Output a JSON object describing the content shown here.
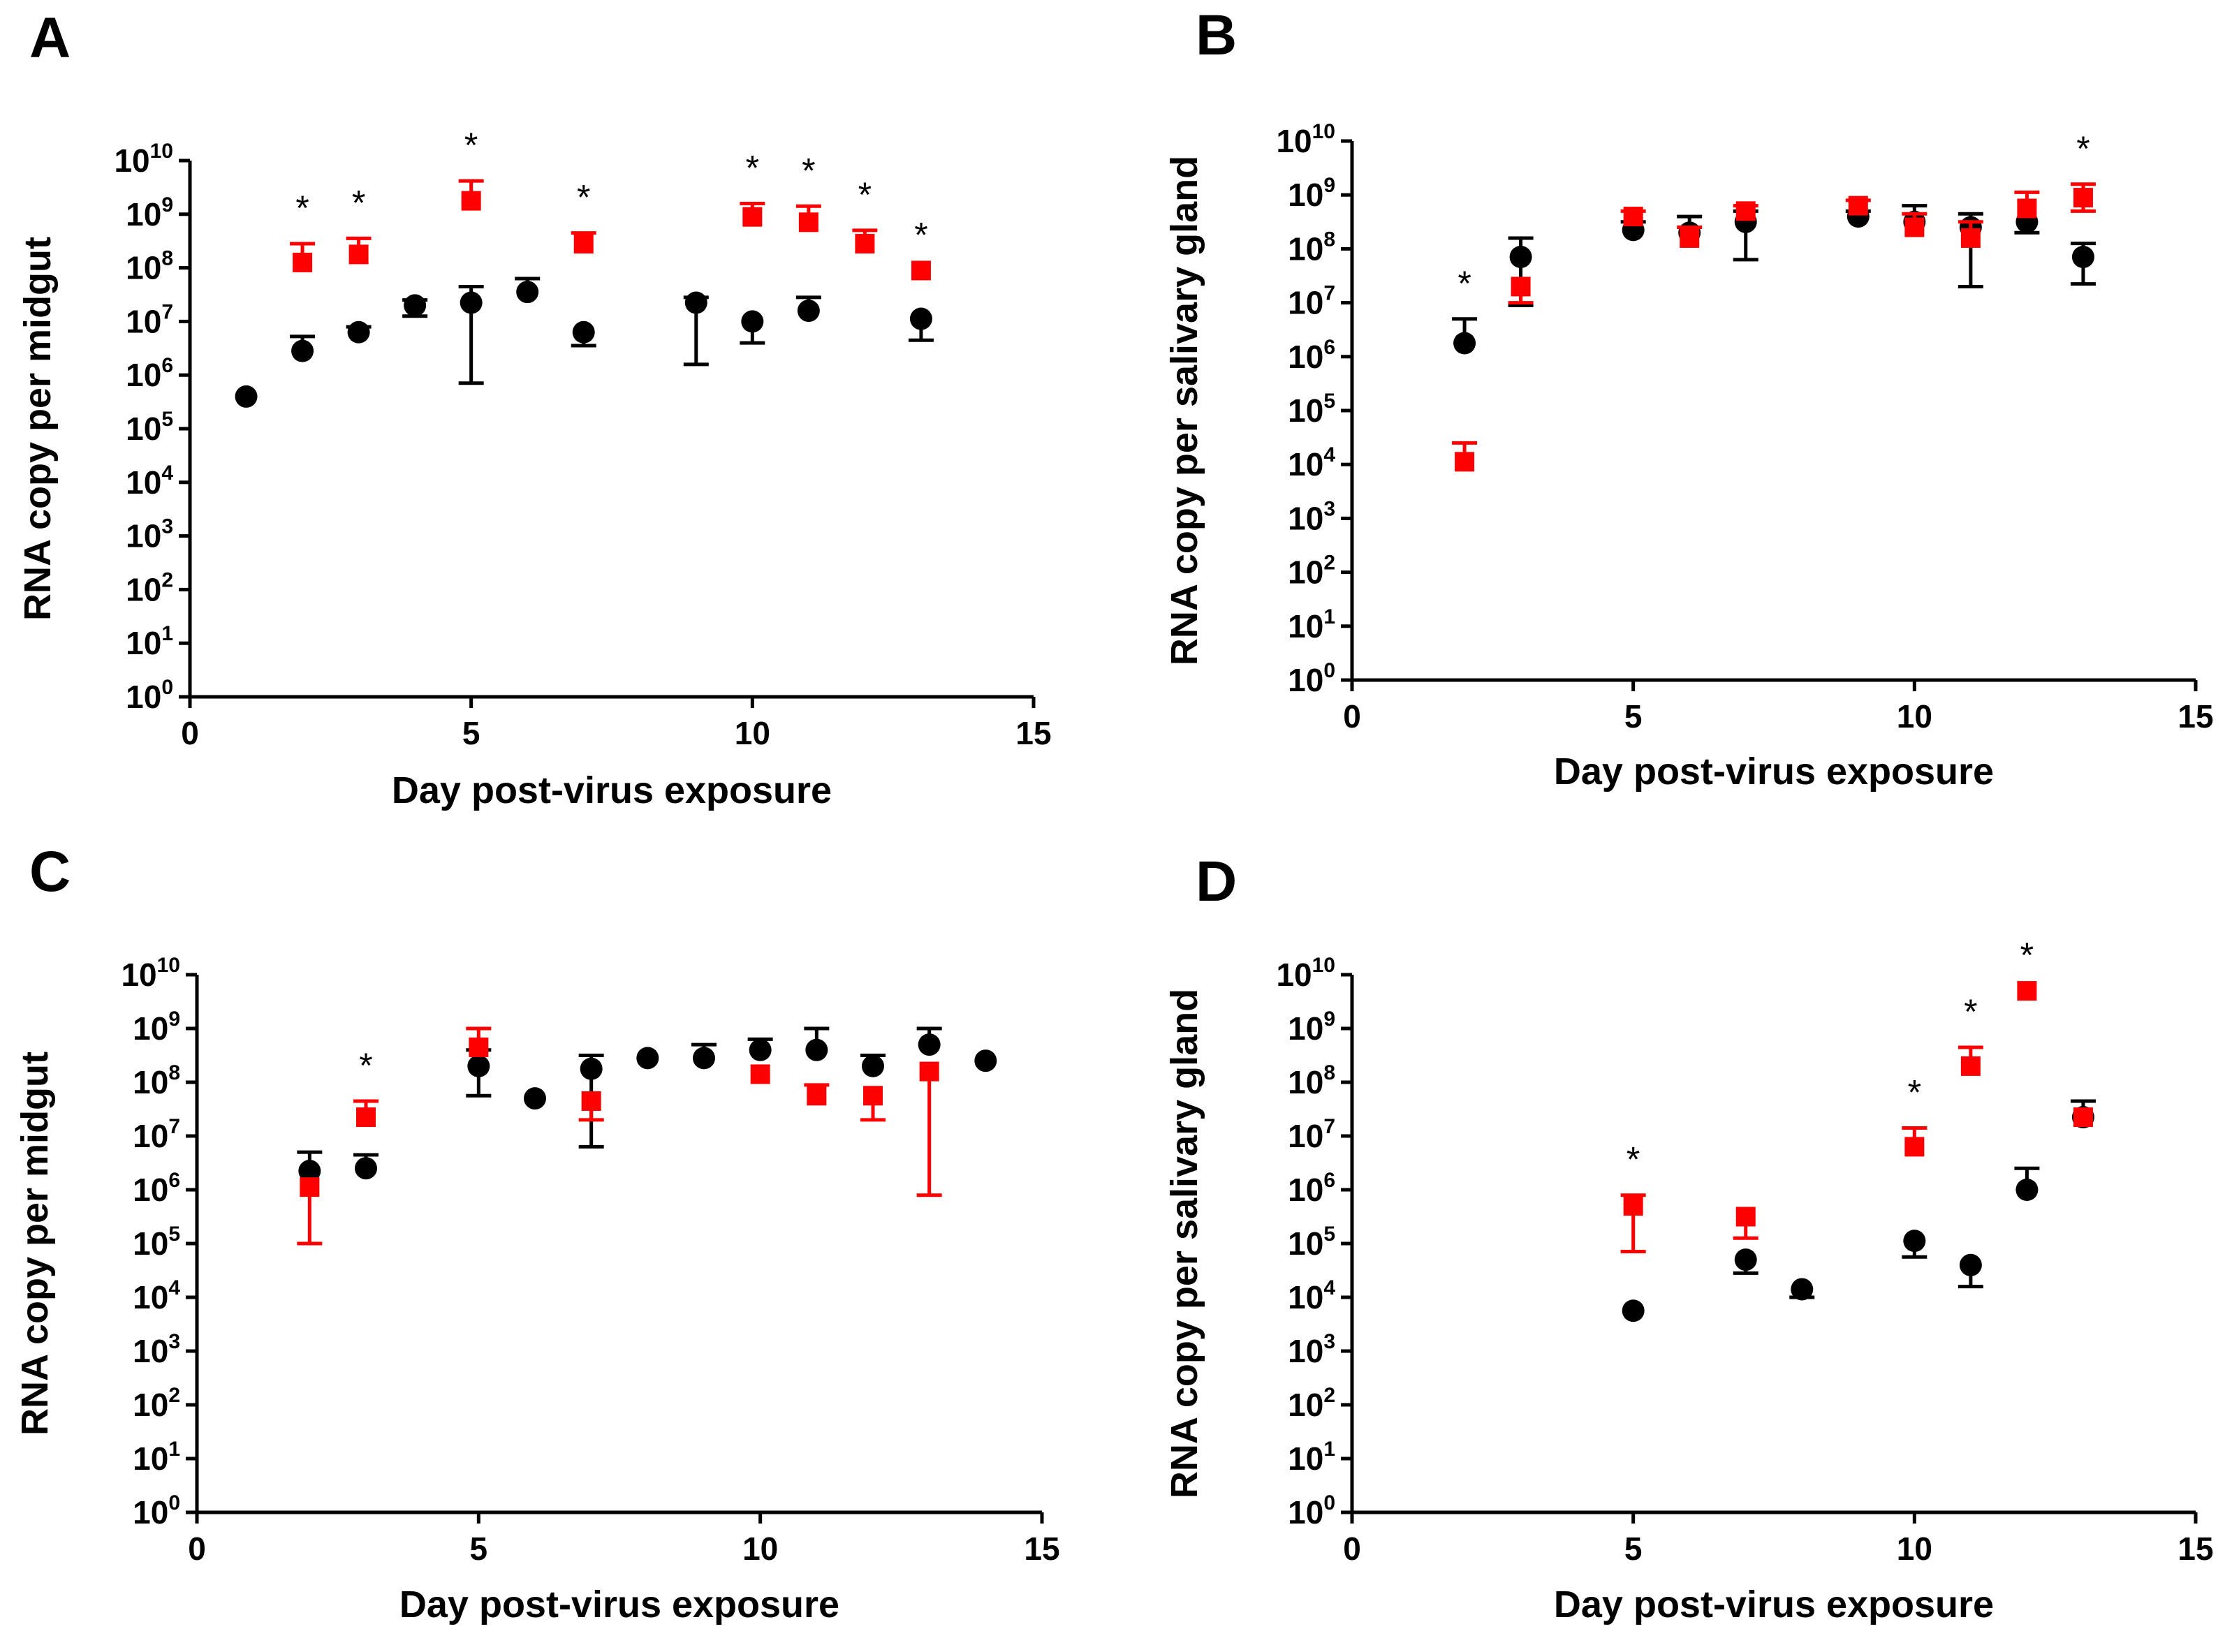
{
  "colors": {
    "series_black": "#000000",
    "series_red": "#ff0000"
  },
  "chart_data": [
    {
      "panel": "A",
      "type": "scatter",
      "xlabel": "Day post-virus exposure",
      "ylabel": "RNA copy per midgut",
      "xlim": [
        0,
        15
      ],
      "xticks": [
        0,
        5,
        10,
        15
      ],
      "xtick_labels": [
        "0",
        "5",
        "10",
        "15"
      ],
      "ylim_log10": [
        0,
        10
      ],
      "yticks_log10": [
        0,
        1,
        2,
        3,
        4,
        5,
        6,
        7,
        8,
        9,
        10
      ],
      "ytick_base": "10",
      "ytick_exponents": [
        "0",
        "1",
        "2",
        "3",
        "4",
        "5",
        "6",
        "7",
        "8",
        "9",
        "10"
      ],
      "significance_marker": "*",
      "significant_days": [
        2,
        3,
        5,
        7,
        10,
        11,
        12,
        13
      ],
      "series": [
        {
          "marker": "circle",
          "color": "#000000",
          "points": [
            {
              "day": 1,
              "log10_value": 5.6
            },
            {
              "day": 2,
              "log10_value": 6.45,
              "err_up": 6.72
            },
            {
              "day": 3,
              "log10_value": 6.8,
              "err_up": 6.9
            },
            {
              "day": 4,
              "log10_value": 7.3,
              "err_up": 7.4,
              "err_down": 7.1
            },
            {
              "day": 5,
              "log10_value": 7.35,
              "err_up": 7.65,
              "err_down": 5.85
            },
            {
              "day": 6,
              "log10_value": 7.55,
              "err_up": 7.8
            },
            {
              "day": 7,
              "log10_value": 6.8,
              "err_down": 6.55
            },
            {
              "day": 9,
              "log10_value": 7.35,
              "err_up": 7.45,
              "err_down": 6.2
            },
            {
              "day": 10,
              "log10_value": 7.0,
              "err_down": 6.6
            },
            {
              "day": 11,
              "log10_value": 7.2,
              "err_up": 7.45
            },
            {
              "day": 13,
              "log10_value": 7.05,
              "err_down": 6.65
            }
          ]
        },
        {
          "marker": "square",
          "color": "#ff0000",
          "points": [
            {
              "day": 2,
              "log10_value": 8.1,
              "err_up": 8.45
            },
            {
              "day": 3,
              "log10_value": 8.25,
              "err_up": 8.55
            },
            {
              "day": 5,
              "log10_value": 9.25,
              "err_up": 9.62
            },
            {
              "day": 7,
              "log10_value": 8.45,
              "err_up": 8.65
            },
            {
              "day": 10,
              "log10_value": 8.95,
              "err_up": 9.2
            },
            {
              "day": 11,
              "log10_value": 8.85,
              "err_up": 9.15
            },
            {
              "day": 12,
              "log10_value": 8.45,
              "err_up": 8.7
            },
            {
              "day": 13,
              "log10_value": 7.95
            }
          ]
        }
      ]
    },
    {
      "panel": "B",
      "type": "scatter",
      "xlabel": "Day post-virus exposure",
      "ylabel": "RNA copy per salivary gland",
      "xlim": [
        0,
        15
      ],
      "xticks": [
        0,
        5,
        10,
        15
      ],
      "xtick_labels": [
        "0",
        "5",
        "10",
        "15"
      ],
      "ylim_log10": [
        0,
        10
      ],
      "yticks_log10": [
        0,
        1,
        2,
        3,
        4,
        5,
        6,
        7,
        8,
        9,
        10
      ],
      "ytick_base": "10",
      "ytick_exponents": [
        "0",
        "1",
        "2",
        "3",
        "4",
        "5",
        "6",
        "7",
        "8",
        "9",
        "10"
      ],
      "significance_marker": "*",
      "significant_days": [
        2,
        13
      ],
      "series": [
        {
          "marker": "circle",
          "color": "#000000",
          "points": [
            {
              "day": 2,
              "log10_value": 6.25,
              "err_up": 6.7
            },
            {
              "day": 3,
              "log10_value": 7.85,
              "err_up": 8.2,
              "err_down": 6.95
            },
            {
              "day": 5,
              "log10_value": 8.35,
              "err_up": 8.5
            },
            {
              "day": 6,
              "log10_value": 8.3,
              "err_up": 8.6
            },
            {
              "day": 7,
              "log10_value": 8.5,
              "err_up": 8.7,
              "err_down": 7.8
            },
            {
              "day": 9,
              "log10_value": 8.6,
              "err_up": 8.7
            },
            {
              "day": 10,
              "log10_value": 8.5,
              "err_up": 8.8
            },
            {
              "day": 11,
              "log10_value": 8.4,
              "err_up": 8.65,
              "err_down": 7.3
            },
            {
              "day": 12,
              "log10_value": 8.5,
              "err_down": 8.3
            },
            {
              "day": 13,
              "log10_value": 7.85,
              "err_up": 8.1,
              "err_down": 7.35
            }
          ]
        },
        {
          "marker": "square",
          "color": "#ff0000",
          "points": [
            {
              "day": 2,
              "log10_value": 4.05,
              "err_up": 4.4
            },
            {
              "day": 3,
              "log10_value": 7.3,
              "err_down": 7.0
            },
            {
              "day": 5,
              "log10_value": 8.6,
              "err_up": 8.7
            },
            {
              "day": 6,
              "log10_value": 8.2,
              "err_up": 8.4
            },
            {
              "day": 7,
              "log10_value": 8.7,
              "err_up": 8.8
            },
            {
              "day": 9,
              "log10_value": 8.8,
              "err_up": 8.9
            },
            {
              "day": 10,
              "log10_value": 8.4,
              "err_up": 8.65
            },
            {
              "day": 11,
              "log10_value": 8.2,
              "err_up": 8.5
            },
            {
              "day": 12,
              "log10_value": 8.75,
              "err_up": 9.05
            },
            {
              "day": 13,
              "log10_value": 8.95,
              "err_up": 9.2,
              "err_down": 8.7
            }
          ]
        }
      ]
    },
    {
      "panel": "C",
      "type": "scatter",
      "xlabel": "Day post-virus exposure",
      "ylabel": "RNA copy per midgut",
      "xlim": [
        0,
        15
      ],
      "xticks": [
        0,
        5,
        10,
        15
      ],
      "xtick_labels": [
        "0",
        "5",
        "10",
        "15"
      ],
      "ylim_log10": [
        0,
        10
      ],
      "yticks_log10": [
        0,
        1,
        2,
        3,
        4,
        5,
        6,
        7,
        8,
        9,
        10
      ],
      "ytick_base": "10",
      "ytick_exponents": [
        "0",
        "1",
        "2",
        "3",
        "4",
        "5",
        "6",
        "7",
        "8",
        "9",
        "10"
      ],
      "significance_marker": "*",
      "significant_days": [
        3
      ],
      "series": [
        {
          "marker": "circle",
          "color": "#000000",
          "points": [
            {
              "day": 2,
              "log10_value": 6.35,
              "err_up": 6.7
            },
            {
              "day": 3,
              "log10_value": 6.4,
              "err_up": 6.65
            },
            {
              "day": 5,
              "log10_value": 8.3,
              "err_up": 8.6,
              "err_down": 7.75
            },
            {
              "day": 6,
              "log10_value": 7.7
            },
            {
              "day": 7,
              "log10_value": 8.25,
              "err_up": 8.5,
              "err_down": 6.8
            },
            {
              "day": 8,
              "log10_value": 8.45
            },
            {
              "day": 9,
              "log10_value": 8.45,
              "err_up": 8.7
            },
            {
              "day": 10,
              "log10_value": 8.6,
              "err_up": 8.8
            },
            {
              "day": 11,
              "log10_value": 8.6,
              "err_up": 9.0
            },
            {
              "day": 12,
              "log10_value": 8.3,
              "err_up": 8.5
            },
            {
              "day": 13,
              "log10_value": 8.7,
              "err_up": 9.0
            },
            {
              "day": 14,
              "log10_value": 8.4
            }
          ]
        },
        {
          "marker": "square",
          "color": "#ff0000",
          "points": [
            {
              "day": 2,
              "log10_value": 6.05,
              "err_down": 5.0
            },
            {
              "day": 3,
              "log10_value": 7.35,
              "err_up": 7.65
            },
            {
              "day": 5,
              "log10_value": 8.65,
              "err_up": 9.0
            },
            {
              "day": 7,
              "log10_value": 7.65,
              "err_down": 7.3
            },
            {
              "day": 10,
              "log10_value": 8.15
            },
            {
              "day": 11,
              "log10_value": 7.75,
              "err_up": 7.95
            },
            {
              "day": 12,
              "log10_value": 7.75,
              "err_down": 7.3
            },
            {
              "day": 13,
              "log10_value": 8.2,
              "err_down": 5.9
            }
          ]
        }
      ]
    },
    {
      "panel": "D",
      "type": "scatter",
      "xlabel": "Day post-virus exposure",
      "ylabel": "RNA copy per salivary gland",
      "xlim": [
        0,
        15
      ],
      "xticks": [
        0,
        5,
        10,
        15
      ],
      "xtick_labels": [
        "0",
        "5",
        "10",
        "15"
      ],
      "ylim_log10": [
        0,
        10
      ],
      "yticks_log10": [
        0,
        1,
        2,
        3,
        4,
        5,
        6,
        7,
        8,
        9,
        10
      ],
      "ytick_base": "10",
      "ytick_exponents": [
        "0",
        "1",
        "2",
        "3",
        "4",
        "5",
        "6",
        "7",
        "8",
        "9",
        "10"
      ],
      "significance_marker": "*",
      "significant_days": [
        5,
        10,
        11,
        12
      ],
      "series": [
        {
          "marker": "circle",
          "color": "#000000",
          "points": [
            {
              "day": 5,
              "log10_value": 3.75
            },
            {
              "day": 7,
              "log10_value": 4.7,
              "err_down": 4.45
            },
            {
              "day": 8,
              "log10_value": 4.15,
              "err_down": 4.0
            },
            {
              "day": 10,
              "log10_value": 5.05,
              "err_down": 4.75
            },
            {
              "day": 11,
              "log10_value": 4.6,
              "err_down": 4.2
            },
            {
              "day": 12,
              "log10_value": 6.0,
              "err_up": 6.4
            },
            {
              "day": 13,
              "log10_value": 7.35,
              "err_up": 7.65
            }
          ]
        },
        {
          "marker": "square",
          "color": "#ff0000",
          "points": [
            {
              "day": 5,
              "log10_value": 5.7,
              "err_up": 5.9,
              "err_down": 4.85
            },
            {
              "day": 7,
              "log10_value": 5.5,
              "err_down": 5.1
            },
            {
              "day": 10,
              "log10_value": 6.8,
              "err_up": 7.15
            },
            {
              "day": 11,
              "log10_value": 8.3,
              "err_up": 8.65
            },
            {
              "day": 12,
              "log10_value": 9.7
            },
            {
              "day": 13,
              "log10_value": 7.35
            }
          ]
        }
      ]
    }
  ]
}
